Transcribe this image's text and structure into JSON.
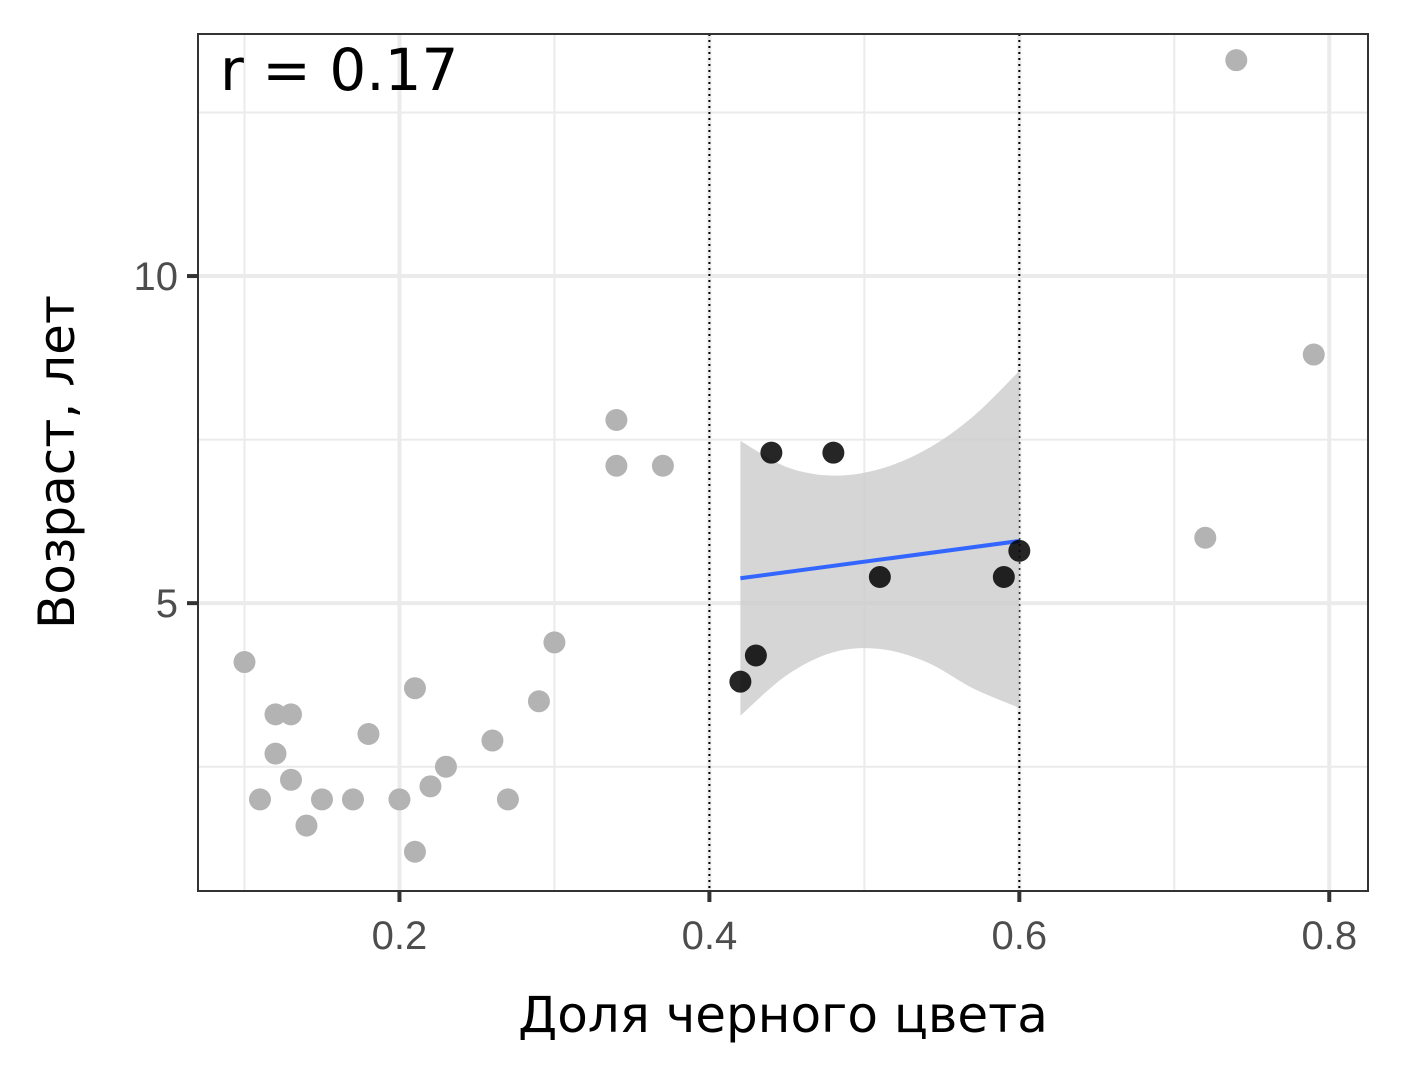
{
  "chart_data": {
    "type": "scatter",
    "xlabel": "Доля черного цвета",
    "ylabel": "Возраст, лет",
    "annotation": "r = 0.17",
    "xlim": [
      0.07,
      0.825
    ],
    "ylim": [
      0.6,
      13.7
    ],
    "x_ticks": [
      0.2,
      0.4,
      0.6,
      0.8
    ],
    "x_tick_labels": [
      "0.2",
      "0.4",
      "0.6",
      "0.8"
    ],
    "y_ticks": [
      5,
      10
    ],
    "y_tick_labels": [
      "5",
      "10"
    ],
    "grid": true,
    "vlines": [
      0.4,
      0.6
    ],
    "series": [
      {
        "role": "outside",
        "color": "#b3b3b3",
        "points": [
          [
            0.1,
            4.1
          ],
          [
            0.11,
            2.0
          ],
          [
            0.12,
            3.3
          ],
          [
            0.12,
            2.7
          ],
          [
            0.13,
            3.3
          ],
          [
            0.13,
            2.3
          ],
          [
            0.14,
            1.6
          ],
          [
            0.15,
            2.0
          ],
          [
            0.17,
            2.0
          ],
          [
            0.18,
            3.0
          ],
          [
            0.2,
            2.0
          ],
          [
            0.21,
            1.2
          ],
          [
            0.21,
            3.7
          ],
          [
            0.22,
            2.2
          ],
          [
            0.23,
            2.5
          ],
          [
            0.26,
            2.9
          ],
          [
            0.27,
            2.0
          ],
          [
            0.29,
            3.5
          ],
          [
            0.3,
            4.4
          ],
          [
            0.34,
            7.8
          ],
          [
            0.34,
            7.1
          ],
          [
            0.37,
            7.1
          ],
          [
            0.72,
            6.0
          ],
          [
            0.74,
            13.3
          ],
          [
            0.79,
            8.8
          ]
        ]
      },
      {
        "role": "inside",
        "color": "#000000",
        "points": [
          [
            0.42,
            3.8
          ],
          [
            0.43,
            4.2
          ],
          [
            0.44,
            7.3
          ],
          [
            0.48,
            7.3
          ],
          [
            0.51,
            5.4
          ],
          [
            0.59,
            5.4
          ],
          [
            0.6,
            5.8
          ]
        ]
      }
    ],
    "fit": {
      "color": "#3366ff",
      "x": [
        0.42,
        0.6
      ],
      "y": [
        5.38,
        5.95
      ],
      "ci_color": "#cccccc",
      "ci_x": [
        0.42,
        0.45,
        0.48,
        0.51,
        0.54,
        0.57,
        0.6
      ],
      "ci_upper": [
        7.48,
        7.08,
        6.95,
        7.05,
        7.35,
        7.85,
        8.55
      ],
      "ci_lower": [
        3.28,
        3.9,
        4.25,
        4.3,
        4.1,
        3.7,
        3.4
      ]
    }
  }
}
